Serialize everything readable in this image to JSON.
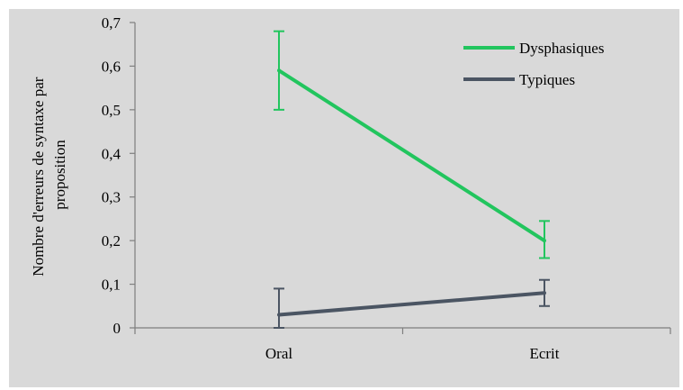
{
  "chart_data": {
    "type": "line",
    "categories": [
      "Oral",
      "Ecrit"
    ],
    "series": [
      {
        "name": "Dysphasiques",
        "values": [
          0.59,
          0.2
        ],
        "error_low": [
          0.5,
          0.16
        ],
        "error_high": [
          0.68,
          0.245
        ],
        "color": "#22c55e"
      },
      {
        "name": "Typiques",
        "values": [
          0.03,
          0.08
        ],
        "error_low": [
          0.0,
          0.05
        ],
        "error_high": [
          0.09,
          0.11
        ],
        "color": "#4b5563"
      }
    ],
    "ylabel_lines": [
      "Nombre d'erreurs de syntaxe par",
      "proposition"
    ],
    "ylim": [
      0,
      0.7
    ],
    "yticks": [
      {
        "value": 0,
        "label": "0"
      },
      {
        "value": 0.1,
        "label": "0,1"
      },
      {
        "value": 0.2,
        "label": "0,2"
      },
      {
        "value": 0.3,
        "label": "0,3"
      },
      {
        "value": 0.4,
        "label": "0,4"
      },
      {
        "value": 0.5,
        "label": "0,5"
      },
      {
        "value": 0.6,
        "label": "0,6"
      },
      {
        "value": 0.7,
        "label": "0,7"
      }
    ],
    "grid": false,
    "legend_position": "top-right",
    "background_color": "#d9d9d9"
  }
}
